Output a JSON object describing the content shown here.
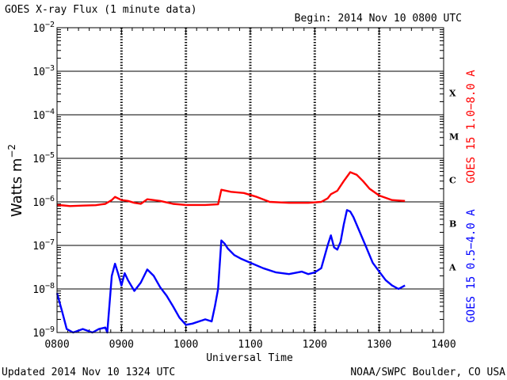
{
  "chart_data": {
    "type": "line",
    "title": "GOES X-ray Flux (1 minute data)",
    "begin_label": "Begin: 2014 Nov 10 0800 UTC",
    "xlabel": "Universal Time",
    "ylabel_base": "Watts m",
    "ylabel_exp": "−2",
    "x_ticks": [
      "0800",
      "0900",
      "1000",
      "1100",
      "1200",
      "1300",
      "1400"
    ],
    "xlim_hours": [
      8,
      14
    ],
    "y_scale": "log",
    "ylim": [
      1e-09,
      0.01
    ],
    "y_ticks": [
      {
        "base": "10",
        "exp": "−9"
      },
      {
        "base": "10",
        "exp": "−8"
      },
      {
        "base": "10",
        "exp": "−7"
      },
      {
        "base": "10",
        "exp": "−6"
      },
      {
        "base": "10",
        "exp": "−5"
      },
      {
        "base": "10",
        "exp": "−4"
      },
      {
        "base": "10",
        "exp": "−3"
      },
      {
        "base": "10",
        "exp": "−2"
      }
    ],
    "flare_classes": [
      "A",
      "B",
      "C",
      "M",
      "X"
    ],
    "grid": true,
    "series": [
      {
        "name": "GOES 15 1.0−8.0 A",
        "color": "#ff0000",
        "x": [
          8.0,
          8.1,
          8.2,
          8.4,
          8.6,
          8.75,
          8.85,
          8.9,
          9.0,
          9.1,
          9.2,
          9.3,
          9.4,
          9.6,
          9.8,
          10.0,
          10.3,
          10.5,
          10.55,
          10.7,
          10.9,
          11.1,
          11.3,
          11.6,
          11.9,
          12.1,
          12.2,
          12.25,
          12.35,
          12.45,
          12.55,
          12.65,
          12.75,
          12.85,
          13.0,
          13.2,
          13.4
        ],
        "y": [
          8.5e-07,
          8.3e-07,
          8e-07,
          8.2e-07,
          8.4e-07,
          9e-07,
          1.1e-06,
          1.3e-06,
          1.1e-06,
          1.05e-06,
          9.5e-07,
          9e-07,
          1.15e-06,
          1.05e-06,
          9e-07,
          8.5e-07,
          8.5e-07,
          8.8e-07,
          1.9e-06,
          1.7e-06,
          1.6e-06,
          1.3e-06,
          1e-06,
          9.5e-07,
          9.5e-07,
          1e-06,
          1.2e-06,
          1.5e-06,
          1.8e-06,
          3e-06,
          4.8e-06,
          4.2e-06,
          3e-06,
          2e-06,
          1.4e-06,
          1.1e-06,
          1.05e-06
        ]
      },
      {
        "name": "GOES 15 0.5−4.0 A",
        "color": "#0000ff",
        "x": [
          8.0,
          8.08,
          8.15,
          8.25,
          8.4,
          8.55,
          8.65,
          8.75,
          8.78,
          8.85,
          8.9,
          8.95,
          9.0,
          9.05,
          9.1,
          9.2,
          9.3,
          9.4,
          9.5,
          9.6,
          9.7,
          9.8,
          9.9,
          10.0,
          10.1,
          10.3,
          10.4,
          10.45,
          10.5,
          10.55,
          10.6,
          10.65,
          10.75,
          10.85,
          11.0,
          11.2,
          11.4,
          11.6,
          11.8,
          11.9,
          12.0,
          12.1,
          12.2,
          12.25,
          12.3,
          12.35,
          12.4,
          12.45,
          12.5,
          12.55,
          12.6,
          12.7,
          12.8,
          12.9,
          13.0,
          13.1,
          13.2,
          13.3,
          13.4
        ],
        "y": [
          8e-09,
          3e-09,
          1.2e-09,
          1e-09,
          1.2e-09,
          1e-09,
          1.2e-09,
          1.3e-09,
          1e-09,
          2e-08,
          3.8e-08,
          2.2e-08,
          1.2e-08,
          2.3e-08,
          1.6e-08,
          9e-09,
          1.4e-08,
          2.8e-08,
          2e-08,
          1.1e-08,
          7e-09,
          4e-09,
          2.2e-09,
          1.5e-09,
          1.6e-09,
          2e-09,
          1.8e-09,
          4e-09,
          1e-08,
          1.3e-07,
          1.1e-07,
          8.5e-08,
          6e-08,
          5e-08,
          4e-08,
          3e-08,
          2.4e-08,
          2.2e-08,
          2.5e-08,
          2.2e-08,
          2.4e-08,
          3e-08,
          1e-07,
          1.7e-07,
          9e-08,
          8e-08,
          1.2e-07,
          3e-07,
          6.5e-07,
          6e-07,
          4.5e-07,
          2e-07,
          9e-08,
          4e-08,
          2.5e-08,
          1.6e-08,
          1.2e-08,
          1e-08,
          1.2e-08
        ]
      }
    ]
  },
  "footer": {
    "updated": "Updated 2014 Nov 10 1324 UTC",
    "credit": "NOAA/SWPC Boulder, CO USA"
  }
}
